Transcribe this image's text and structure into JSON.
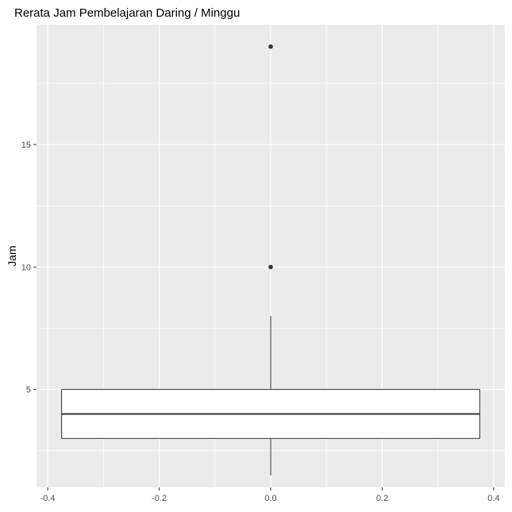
{
  "chart_data": {
    "type": "boxplot",
    "title": "Rerata Jam Pembelajaran Daring / Minggu",
    "xlabel": "",
    "ylabel": "Jam",
    "xlim": [
      -0.42,
      0.42
    ],
    "ylim": [
      1.0,
      19.9
    ],
    "x_ticks": [
      -0.4,
      -0.2,
      0.0,
      0.2,
      0.4
    ],
    "x_tick_labels": [
      "-0.4",
      "-0.2",
      "0.0",
      "0.2",
      "0.4"
    ],
    "y_ticks": [
      5,
      10,
      15
    ],
    "y_tick_labels": [
      "5",
      "10",
      "15"
    ],
    "grid": true,
    "box": {
      "x": 0.0,
      "x_left": -0.375,
      "x_right": 0.375,
      "q1": 3.0,
      "median": 4.0,
      "q3": 5.0,
      "whisker_low": 1.5,
      "whisker_high": 8.0,
      "outliers": [
        10.0,
        19.0
      ]
    },
    "colors": {
      "panel_background": "#ebebeb",
      "grid": "#ffffff",
      "box_fill": "#ffffff",
      "box_stroke": "#333333",
      "tick_text": "#4d4d4d"
    }
  }
}
